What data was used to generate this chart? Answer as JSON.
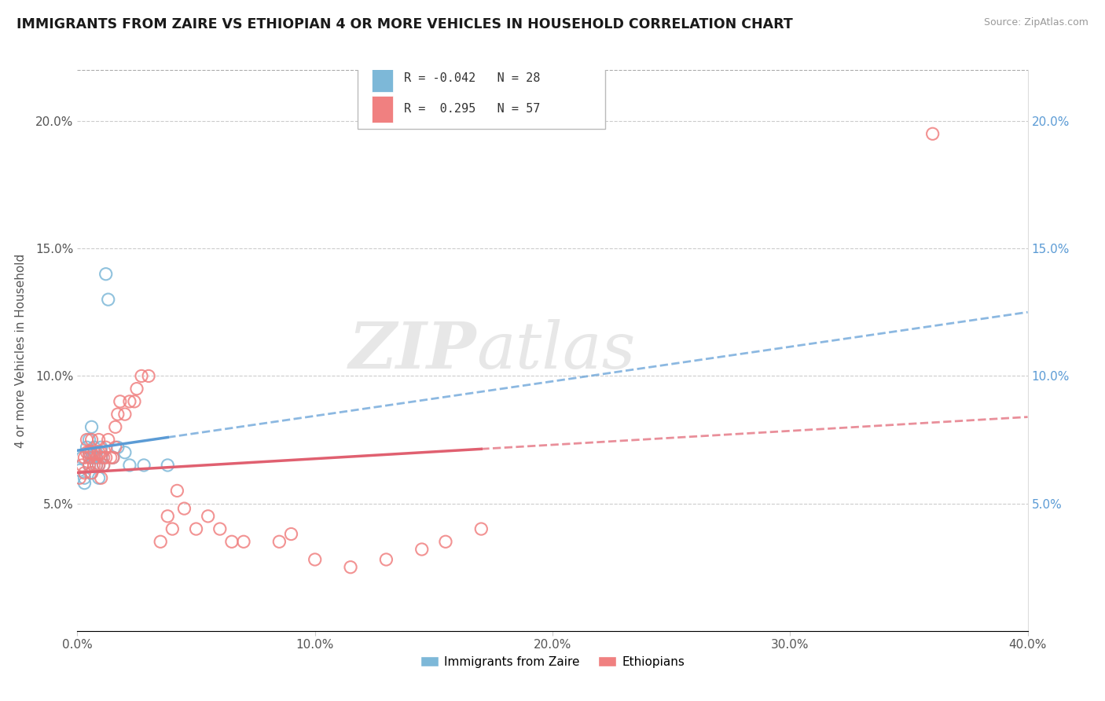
{
  "title": "IMMIGRANTS FROM ZAIRE VS ETHIOPIAN 4 OR MORE VEHICLES IN HOUSEHOLD CORRELATION CHART",
  "source": "Source: ZipAtlas.com",
  "ylabel": "4 or more Vehicles in Household",
  "legend_label1": "Immigrants from Zaire",
  "legend_label2": "Ethiopians",
  "r1": -0.042,
  "n1": 28,
  "r2": 0.295,
  "n2": 57,
  "color1": "#7db8d8",
  "color2": "#f08080",
  "trendline1_color": "#5b9bd5",
  "trendline2_color": "#e06070",
  "xlim": [
    0.0,
    0.4
  ],
  "ylim": [
    0.0,
    0.22
  ],
  "xticks": [
    0.0,
    0.1,
    0.2,
    0.3,
    0.4
  ],
  "yticks": [
    0.0,
    0.05,
    0.1,
    0.15,
    0.2
  ],
  "xticklabels": [
    "0.0%",
    "10.0%",
    "20.0%",
    "30.0%",
    "40.0%"
  ],
  "yticklabels": [
    "",
    "5.0%",
    "10.0%",
    "15.0%",
    "20.0%"
  ],
  "watermark_zip": "ZIP",
  "watermark_atlas": "atlas",
  "background_color": "#ffffff",
  "zaire_x": [
    0.001,
    0.002,
    0.003,
    0.003,
    0.004,
    0.005,
    0.005,
    0.005,
    0.006,
    0.006,
    0.006,
    0.007,
    0.007,
    0.008,
    0.008,
    0.009,
    0.009,
    0.01,
    0.01,
    0.011,
    0.012,
    0.013,
    0.015,
    0.017,
    0.02,
    0.022,
    0.028,
    0.038
  ],
  "zaire_y": [
    0.063,
    0.068,
    0.06,
    0.058,
    0.072,
    0.07,
    0.065,
    0.075,
    0.062,
    0.068,
    0.08,
    0.068,
    0.072,
    0.065,
    0.07,
    0.06,
    0.065,
    0.068,
    0.072,
    0.065,
    0.14,
    0.13,
    0.068,
    0.072,
    0.07,
    0.065,
    0.065,
    0.065
  ],
  "ethiopian_x": [
    0.001,
    0.002,
    0.003,
    0.003,
    0.004,
    0.004,
    0.005,
    0.005,
    0.005,
    0.006,
    0.006,
    0.006,
    0.007,
    0.007,
    0.008,
    0.008,
    0.009,
    0.009,
    0.009,
    0.01,
    0.01,
    0.011,
    0.011,
    0.012,
    0.012,
    0.013,
    0.014,
    0.015,
    0.016,
    0.016,
    0.017,
    0.018,
    0.02,
    0.022,
    0.024,
    0.025,
    0.027,
    0.03,
    0.035,
    0.038,
    0.04,
    0.042,
    0.045,
    0.05,
    0.055,
    0.06,
    0.065,
    0.07,
    0.085,
    0.09,
    0.1,
    0.115,
    0.13,
    0.145,
    0.155,
    0.17,
    0.36
  ],
  "ethiopian_y": [
    0.06,
    0.065,
    0.062,
    0.068,
    0.07,
    0.075,
    0.065,
    0.07,
    0.068,
    0.062,
    0.07,
    0.075,
    0.065,
    0.07,
    0.068,
    0.065,
    0.065,
    0.07,
    0.075,
    0.06,
    0.07,
    0.065,
    0.068,
    0.072,
    0.068,
    0.075,
    0.068,
    0.068,
    0.072,
    0.08,
    0.085,
    0.09,
    0.085,
    0.09,
    0.09,
    0.095,
    0.1,
    0.1,
    0.035,
    0.045,
    0.04,
    0.055,
    0.048,
    0.04,
    0.045,
    0.04,
    0.035,
    0.035,
    0.035,
    0.038,
    0.028,
    0.025,
    0.028,
    0.032,
    0.035,
    0.04,
    0.195
  ]
}
